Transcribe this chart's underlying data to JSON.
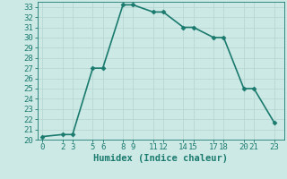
{
  "x": [
    0,
    2,
    3,
    5,
    6,
    8,
    9,
    11,
    12,
    14,
    15,
    17,
    18,
    20,
    21,
    23
  ],
  "y": [
    20.3,
    20.5,
    20.5,
    27.0,
    27.0,
    33.2,
    33.2,
    32.5,
    32.5,
    31.0,
    31.0,
    30.0,
    30.0,
    25.0,
    25.0,
    21.7
  ],
  "line_color": "#1a7a6e",
  "marker": "D",
  "marker_size": 2.5,
  "background_color": "#cde9e5",
  "grid_color": "#b8d8d3",
  "xlabel": "Humidex (Indice chaleur)",
  "xlim": [
    -0.5,
    24
  ],
  "ylim": [
    20,
    33.5
  ],
  "xticks": [
    0,
    2,
    3,
    5,
    6,
    8,
    9,
    11,
    12,
    14,
    15,
    17,
    18,
    20,
    21,
    23
  ],
  "yticks": [
    20,
    21,
    22,
    23,
    24,
    25,
    26,
    27,
    28,
    29,
    30,
    31,
    32,
    33
  ],
  "font_color": "#1a7a6e",
  "tick_fontsize": 6.5,
  "xlabel_fontsize": 7.5,
  "linewidth": 1.2
}
